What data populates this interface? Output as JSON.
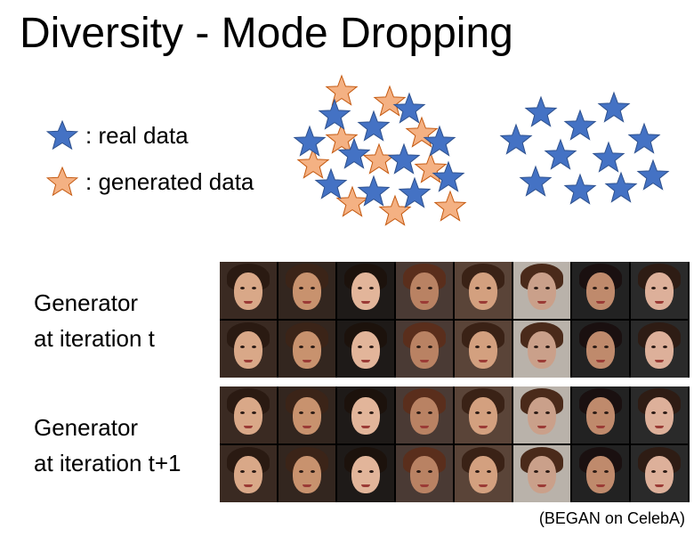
{
  "title": "Diversity - Mode Dropping",
  "legend": {
    "real_label": ": real data",
    "generated_label": ": generated data",
    "real_color": "#4472c4",
    "generated_color": "#f4b183"
  },
  "rows": [
    {
      "label_line1": "Generator",
      "label_line2": "at iteration t"
    },
    {
      "label_line1": "Generator",
      "label_line2": "at iteration t+1"
    }
  ],
  "caption": "(BEGAN on CelebA)",
  "faces": {
    "count_per_block": 16,
    "blocks": 2
  }
}
